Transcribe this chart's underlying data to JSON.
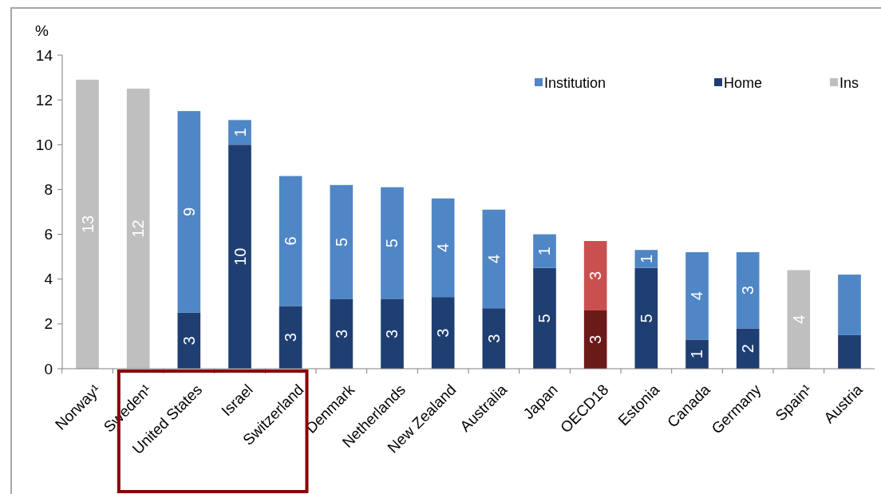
{
  "chart_data": {
    "type": "bar",
    "stacked": true,
    "ylabel": "%",
    "categories": [
      "Norway¹",
      "Sweden¹",
      "United States",
      "Israel",
      "Switzerland",
      "Denmark",
      "Netherlands",
      "New Zealand",
      "Australia",
      "Japan",
      "OECD18",
      "Estonia",
      "Canada",
      "Germany",
      "Spain¹",
      "Austria"
    ],
    "series": [
      {
        "name": "Home",
        "color": "#1f3f73",
        "colors": [
          null,
          null,
          "#1f3f73",
          "#1f3f73",
          "#1f3f73",
          "#1f3f73",
          "#1f3f73",
          "#1f3f73",
          "#1f3f73",
          "#1f3f73",
          "#6b1a1a",
          "#1f3f73",
          "#1f3f73",
          "#1f3f73",
          null,
          "#1f3f73"
        ],
        "values": [
          null,
          null,
          2.5,
          10,
          2.8,
          3.1,
          3.1,
          3.2,
          2.7,
          4.5,
          2.6,
          4.5,
          1.3,
          1.8,
          null,
          1.5
        ],
        "value_labels": [
          null,
          null,
          "3",
          "10",
          "3",
          "3",
          "3",
          "3",
          "3",
          "5",
          "3",
          "5",
          "1",
          "2",
          null,
          null
        ]
      },
      {
        "name": "Institution",
        "color": "#4f86c6",
        "colors": [
          null,
          null,
          "#4f86c6",
          "#4f86c6",
          "#4f86c6",
          "#4f86c6",
          "#4f86c6",
          "#4f86c6",
          "#4f86c6",
          "#4f86c6",
          "#c9504f",
          "#4f86c6",
          "#4f86c6",
          "#4f86c6",
          null,
          "#4f86c6"
        ],
        "values": [
          null,
          null,
          9,
          1.1,
          5.8,
          5.1,
          5,
          4.4,
          4.4,
          1.5,
          3.1,
          0.8,
          3.9,
          3.4,
          null,
          2.7
        ],
        "value_labels": [
          null,
          null,
          "9",
          "1",
          "6",
          "5",
          "5",
          "4",
          "4",
          "1",
          "3",
          "1",
          "4",
          "3",
          null,
          null
        ]
      },
      {
        "name": "Ins",
        "color": "#bfbfbf",
        "values": [
          12.9,
          12.5,
          null,
          null,
          null,
          null,
          null,
          null,
          null,
          null,
          null,
          null,
          null,
          null,
          4.4,
          null
        ],
        "value_labels": [
          "13",
          "12",
          null,
          null,
          null,
          null,
          null,
          null,
          null,
          null,
          null,
          null,
          null,
          null,
          "4",
          null
        ]
      }
    ],
    "ylim": [
      0,
      14
    ],
    "yticks": [
      0,
      2,
      4,
      6,
      8,
      10,
      12,
      14
    ],
    "grid": false,
    "legend": "top right"
  }
}
